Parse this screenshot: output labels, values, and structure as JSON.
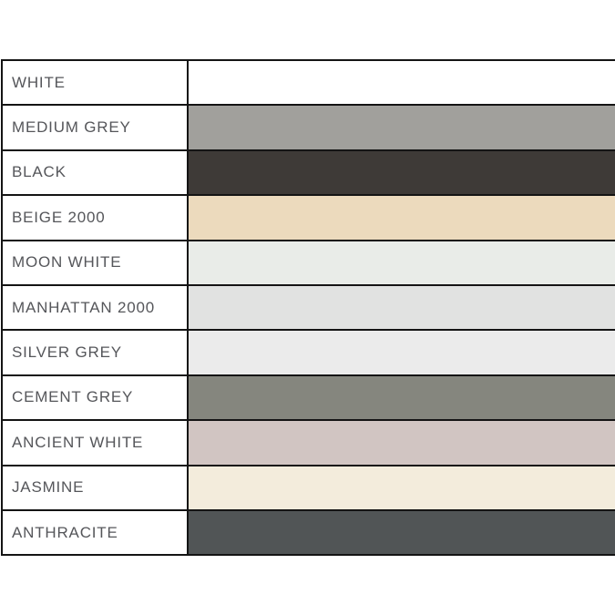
{
  "chart_data": {
    "type": "table",
    "title": "",
    "columns": [
      "colour_name",
      "swatch_color"
    ],
    "rows": [
      {
        "name": "WHITE",
        "swatch_hex": "#ffffff"
      },
      {
        "name": "MEDIUM GREY",
        "swatch_hex": "#a1a09c"
      },
      {
        "name": "BLACK",
        "swatch_hex": "#3e3a37"
      },
      {
        "name": "BEIGE 2000",
        "swatch_hex": "#ecdabd"
      },
      {
        "name": "MOON WHITE",
        "swatch_hex": "#e9ece8"
      },
      {
        "name": "MANHATTAN 2000",
        "swatch_hex": "#e1e2e1"
      },
      {
        "name": "SILVER GREY",
        "swatch_hex": "#ebebeb"
      },
      {
        "name": "CEMENT GREY",
        "swatch_hex": "#85867e"
      },
      {
        "name": "ANCIENT WHITE",
        "swatch_hex": "#d1c5c2"
      },
      {
        "name": "JASMINE",
        "swatch_hex": "#f3ecdc"
      },
      {
        "name": "ANTHRACITE",
        "swatch_hex": "#515556"
      }
    ],
    "layout": {
      "grid": "on",
      "legend": "none"
    }
  },
  "styles": {
    "border_color": "#141414",
    "text_color": "#55565a",
    "label_column_bg": "#ffffff",
    "page_bg": "#ffffff"
  }
}
